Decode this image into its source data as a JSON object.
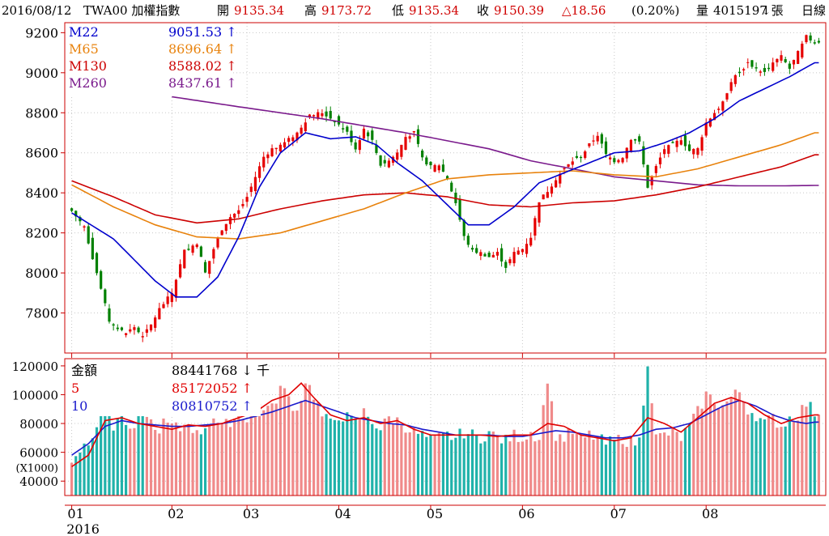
{
  "header": {
    "date": "2016/08/12",
    "symbol": "TWA00 加權指數",
    "open_label": "開",
    "open": "9135.34",
    "high_label": "高",
    "high": "9173.72",
    "low_label": "低",
    "low": "9135.34",
    "close_label": "收",
    "close": "9150.39",
    "change": "△18.56",
    "change_pct": "(0.20%)",
    "volume_label": "量",
    "volume": "4015197",
    "volume_unit": "↓張",
    "period": "日線"
  },
  "colors": {
    "up": "#e60000",
    "down": "#008000",
    "ma22": "#0000cc",
    "ma65": "#e8820c",
    "ma130": "#cc0000",
    "ma260": "#7a1a8c",
    "vol_up": "#f08a8a",
    "vol_down": "#20b2aa",
    "vol_ma5": "#e00000",
    "vol_ma10": "#1a1acc",
    "frame": "#cc0000"
  },
  "price_legend": [
    {
      "label": "M22",
      "value": "9051.53 ↑",
      "color": "#0000cc"
    },
    {
      "label": "M65",
      "value": "8696.64 ↑",
      "color": "#e8820c"
    },
    {
      "label": "M130",
      "value": "8588.02 ↑",
      "color": "#cc0000"
    },
    {
      "label": "M260",
      "value": "8437.61 ↑",
      "color": "#7a1a8c"
    }
  ],
  "volume_legend": [
    {
      "label": "金額",
      "value": "88441768 ↓ 千",
      "color": "#000000"
    },
    {
      "label": "5",
      "value": "85172052 ↑",
      "color": "#e00000"
    },
    {
      "label": "10",
      "value": "80810752 ↑",
      "color": "#1a1acc"
    }
  ],
  "chart_data": {
    "type": "candlestick",
    "price_axis": {
      "ticks": [
        7800,
        8000,
        8200,
        8400,
        8600,
        8800,
        9000,
        9200
      ],
      "ylim": [
        7600,
        9250
      ]
    },
    "volume_axis": {
      "ticks": [
        40000,
        60000,
        80000,
        100000,
        120000
      ],
      "ylim": [
        30000,
        125000
      ],
      "unit_label": "(X1000)"
    },
    "x_axis": {
      "months": [
        "01",
        "02",
        "03",
        "04",
        "05",
        "06",
        "07",
        "08"
      ],
      "year_label": "2016"
    },
    "price_keypoints": [
      [
        0,
        8310
      ],
      [
        3,
        8230
      ],
      [
        6,
        8000
      ],
      [
        9,
        7760
      ],
      [
        11,
        7720
      ],
      [
        13,
        7700
      ],
      [
        15,
        7730
      ],
      [
        17,
        7680
      ],
      [
        19,
        7740
      ],
      [
        21,
        7820
      ],
      [
        24,
        7900
      ],
      [
        27,
        8110
      ],
      [
        30,
        8150
      ],
      [
        32,
        8000
      ],
      [
        34,
        8120
      ],
      [
        36,
        8220
      ],
      [
        38,
        8280
      ],
      [
        40,
        8310
      ],
      [
        42,
        8380
      ],
      [
        44,
        8480
      ],
      [
        46,
        8580
      ],
      [
        48,
        8620
      ],
      [
        51,
        8650
      ],
      [
        54,
        8700
      ],
      [
        57,
        8790
      ],
      [
        60,
        8800
      ],
      [
        63,
        8760
      ],
      [
        66,
        8700
      ],
      [
        68,
        8620
      ],
      [
        70,
        8720
      ],
      [
        72,
        8660
      ],
      [
        74,
        8540
      ],
      [
        76,
        8560
      ],
      [
        78,
        8600
      ],
      [
        80,
        8680
      ],
      [
        82,
        8700
      ],
      [
        84,
        8570
      ],
      [
        86,
        8530
      ],
      [
        88,
        8540
      ],
      [
        90,
        8470
      ],
      [
        92,
        8350
      ],
      [
        94,
        8180
      ],
      [
        96,
        8110
      ],
      [
        98,
        8100
      ],
      [
        100,
        8080
      ],
      [
        102,
        8100
      ],
      [
        104,
        8030
      ],
      [
        106,
        8100
      ],
      [
        108,
        8120
      ],
      [
        110,
        8180
      ],
      [
        112,
        8360
      ],
      [
        114,
        8410
      ],
      [
        116,
        8470
      ],
      [
        118,
        8520
      ],
      [
        120,
        8560
      ],
      [
        122,
        8580
      ],
      [
        124,
        8640
      ],
      [
        126,
        8690
      ],
      [
        128,
        8590
      ],
      [
        130,
        8560
      ],
      [
        132,
        8580
      ],
      [
        134,
        8670
      ],
      [
        136,
        8650
      ],
      [
        138,
        8430
      ],
      [
        140,
        8530
      ],
      [
        142,
        8620
      ],
      [
        144,
        8640
      ],
      [
        146,
        8670
      ],
      [
        148,
        8610
      ],
      [
        150,
        8620
      ],
      [
        152,
        8750
      ],
      [
        154,
        8800
      ],
      [
        156,
        8850
      ],
      [
        158,
        8960
      ],
      [
        160,
        9000
      ],
      [
        162,
        9050
      ],
      [
        164,
        9020
      ],
      [
        166,
        9000
      ],
      [
        168,
        9050
      ],
      [
        170,
        9080
      ],
      [
        172,
        9020
      ],
      [
        174,
        9100
      ],
      [
        176,
        9180
      ],
      [
        178,
        9150
      ]
    ],
    "ma_keypoints": {
      "M22": [
        [
          0,
          8300
        ],
        [
          10,
          8170
        ],
        [
          20,
          7960
        ],
        [
          25,
          7880
        ],
        [
          30,
          7880
        ],
        [
          35,
          7980
        ],
        [
          40,
          8180
        ],
        [
          45,
          8430
        ],
        [
          50,
          8600
        ],
        [
          56,
          8700
        ],
        [
          62,
          8670
        ],
        [
          68,
          8680
        ],
        [
          73,
          8640
        ],
        [
          78,
          8550
        ],
        [
          84,
          8460
        ],
        [
          90,
          8340
        ],
        [
          95,
          8240
        ],
        [
          100,
          8240
        ],
        [
          106,
          8330
        ],
        [
          112,
          8450
        ],
        [
          118,
          8500
        ],
        [
          124,
          8550
        ],
        [
          130,
          8600
        ],
        [
          136,
          8610
        ],
        [
          142,
          8650
        ],
        [
          148,
          8700
        ],
        [
          154,
          8770
        ],
        [
          160,
          8860
        ],
        [
          166,
          8920
        ],
        [
          172,
          8980
        ],
        [
          178,
          9050
        ]
      ],
      "M65": [
        [
          0,
          8440
        ],
        [
          10,
          8330
        ],
        [
          20,
          8240
        ],
        [
          30,
          8180
        ],
        [
          40,
          8170
        ],
        [
          50,
          8200
        ],
        [
          60,
          8260
        ],
        [
          70,
          8320
        ],
        [
          80,
          8400
        ],
        [
          90,
          8470
        ],
        [
          100,
          8490
        ],
        [
          110,
          8500
        ],
        [
          120,
          8510
        ],
        [
          130,
          8490
        ],
        [
          140,
          8480
        ],
        [
          150,
          8520
        ],
        [
          160,
          8580
        ],
        [
          170,
          8640
        ],
        [
          178,
          8700
        ]
      ],
      "M130": [
        [
          0,
          8460
        ],
        [
          10,
          8380
        ],
        [
          20,
          8290
        ],
        [
          30,
          8250
        ],
        [
          40,
          8270
        ],
        [
          50,
          8320
        ],
        [
          60,
          8360
        ],
        [
          70,
          8390
        ],
        [
          80,
          8400
        ],
        [
          90,
          8380
        ],
        [
          100,
          8340
        ],
        [
          110,
          8330
        ],
        [
          120,
          8350
        ],
        [
          130,
          8360
        ],
        [
          140,
          8390
        ],
        [
          150,
          8430
        ],
        [
          160,
          8480
        ],
        [
          170,
          8530
        ],
        [
          178,
          8590
        ]
      ],
      "M260": [
        [
          24,
          8880
        ],
        [
          40,
          8830
        ],
        [
          60,
          8770
        ],
        [
          80,
          8700
        ],
        [
          100,
          8620
        ],
        [
          110,
          8560
        ],
        [
          120,
          8520
        ],
        [
          130,
          8480
        ],
        [
          140,
          8460
        ],
        [
          150,
          8440
        ],
        [
          160,
          8435
        ],
        [
          170,
          8435
        ],
        [
          178,
          8437
        ]
      ]
    },
    "volume_keypoints": [
      [
        0,
        55000
      ],
      [
        2,
        62000
      ],
      [
        4,
        68000
      ],
      [
        6,
        80000
      ],
      [
        8,
        95000
      ],
      [
        10,
        78000
      ],
      [
        12,
        90000
      ],
      [
        14,
        72000
      ],
      [
        16,
        82000
      ],
      [
        18,
        88000
      ],
      [
        20,
        74000
      ],
      [
        22,
        80000
      ],
      [
        24,
        78000
      ],
      [
        26,
        76000
      ],
      [
        28,
        82000
      ],
      [
        30,
        72000
      ],
      [
        32,
        78000
      ],
      [
        34,
        85000
      ],
      [
        36,
        76000
      ],
      [
        38,
        82000
      ],
      [
        40,
        86000
      ],
      [
        42,
        84000
      ],
      [
        44,
        95000
      ],
      [
        46,
        92000
      ],
      [
        48,
        90000
      ],
      [
        50,
        105000
      ],
      [
        52,
        98000
      ],
      [
        54,
        88000
      ],
      [
        56,
        110000
      ],
      [
        58,
        100000
      ],
      [
        60,
        85000
      ],
      [
        62,
        80000
      ],
      [
        64,
        86000
      ],
      [
        66,
        84000
      ],
      [
        68,
        80000
      ],
      [
        70,
        88000
      ],
      [
        72,
        82000
      ],
      [
        74,
        76000
      ],
      [
        76,
        84000
      ],
      [
        78,
        82000
      ],
      [
        80,
        78000
      ],
      [
        82,
        74000
      ],
      [
        84,
        72000
      ],
      [
        86,
        68000
      ],
      [
        88,
        70000
      ],
      [
        90,
        72000
      ],
      [
        92,
        70000
      ],
      [
        94,
        74000
      ],
      [
        96,
        72000
      ],
      [
        98,
        70000
      ],
      [
        100,
        74000
      ],
      [
        102,
        70000
      ],
      [
        104,
        68000
      ],
      [
        106,
        72000
      ],
      [
        108,
        70000
      ],
      [
        110,
        74000
      ],
      [
        112,
        70000
      ],
      [
        114,
        112000
      ],
      [
        116,
        72000
      ],
      [
        118,
        70000
      ],
      [
        120,
        74000
      ],
      [
        122,
        68000
      ],
      [
        124,
        72000
      ],
      [
        126,
        70000
      ],
      [
        128,
        66000
      ],
      [
        130,
        68000
      ],
      [
        132,
        70000
      ],
      [
        134,
        66000
      ],
      [
        136,
        68000
      ],
      [
        138,
        124000
      ],
      [
        140,
        70000
      ],
      [
        142,
        72000
      ],
      [
        144,
        74000
      ],
      [
        146,
        70000
      ],
      [
        148,
        78000
      ],
      [
        150,
        88000
      ],
      [
        152,
        100000
      ],
      [
        154,
        96000
      ],
      [
        156,
        92000
      ],
      [
        158,
        98000
      ],
      [
        160,
        102000
      ],
      [
        162,
        90000
      ],
      [
        164,
        86000
      ],
      [
        166,
        80000
      ],
      [
        168,
        84000
      ],
      [
        170,
        78000
      ],
      [
        172,
        84000
      ],
      [
        174,
        86000
      ],
      [
        176,
        94000
      ],
      [
        178,
        88000
      ]
    ],
    "volume_ma_keypoints": {
      "5": [
        [
          0,
          50000
        ],
        [
          4,
          58000
        ],
        [
          8,
          82000
        ],
        [
          12,
          84000
        ],
        [
          16,
          80000
        ],
        [
          20,
          78000
        ],
        [
          24,
          76000
        ],
        [
          28,
          79000
        ],
        [
          32,
          78000
        ],
        [
          36,
          80000
        ],
        [
          40,
          84000
        ],
        [
          44,
          88000
        ],
        [
          48,
          96000
        ],
        [
          52,
          100000
        ],
        [
          55,
          108000
        ],
        [
          58,
          98000
        ],
        [
          62,
          86000
        ],
        [
          66,
          82000
        ],
        [
          70,
          84000
        ],
        [
          74,
          80000
        ],
        [
          78,
          82000
        ],
        [
          82,
          76000
        ],
        [
          86,
          72000
        ],
        [
          90,
          72000
        ],
        [
          94,
          72000
        ],
        [
          98,
          72000
        ],
        [
          102,
          71000
        ],
        [
          106,
          72000
        ],
        [
          110,
          72000
        ],
        [
          114,
          80000
        ],
        [
          118,
          78000
        ],
        [
          122,
          72000
        ],
        [
          126,
          70000
        ],
        [
          130,
          68000
        ],
        [
          134,
          70000
        ],
        [
          138,
          84000
        ],
        [
          142,
          80000
        ],
        [
          146,
          74000
        ],
        [
          150,
          84000
        ],
        [
          154,
          94000
        ],
        [
          158,
          98000
        ],
        [
          162,
          94000
        ],
        [
          166,
          86000
        ],
        [
          170,
          80000
        ],
        [
          174,
          84000
        ],
        [
          178,
          86000
        ]
      ],
      "10": [
        [
          0,
          58000
        ],
        [
          4,
          66000
        ],
        [
          8,
          78000
        ],
        [
          12,
          82000
        ],
        [
          16,
          80000
        ],
        [
          20,
          79000
        ],
        [
          24,
          78000
        ],
        [
          28,
          78000
        ],
        [
          32,
          79000
        ],
        [
          36,
          80000
        ],
        [
          40,
          82000
        ],
        [
          44,
          85000
        ],
        [
          48,
          88000
        ],
        [
          52,
          92000
        ],
        [
          56,
          96000
        ],
        [
          60,
          92000
        ],
        [
          64,
          88000
        ],
        [
          68,
          84000
        ],
        [
          72,
          82000
        ],
        [
          76,
          80000
        ],
        [
          80,
          79000
        ],
        [
          84,
          76000
        ],
        [
          88,
          74000
        ],
        [
          92,
          72000
        ],
        [
          96,
          72000
        ],
        [
          100,
          72000
        ],
        [
          104,
          71000
        ],
        [
          108,
          71000
        ],
        [
          112,
          73000
        ],
        [
          116,
          75000
        ],
        [
          120,
          74000
        ],
        [
          124,
          72000
        ],
        [
          128,
          70000
        ],
        [
          132,
          70000
        ],
        [
          136,
          72000
        ],
        [
          140,
          76000
        ],
        [
          144,
          77000
        ],
        [
          148,
          80000
        ],
        [
          152,
          86000
        ],
        [
          156,
          92000
        ],
        [
          160,
          96000
        ],
        [
          164,
          92000
        ],
        [
          168,
          86000
        ],
        [
          172,
          82000
        ],
        [
          176,
          80000
        ],
        [
          178,
          81000
        ]
      ]
    }
  }
}
